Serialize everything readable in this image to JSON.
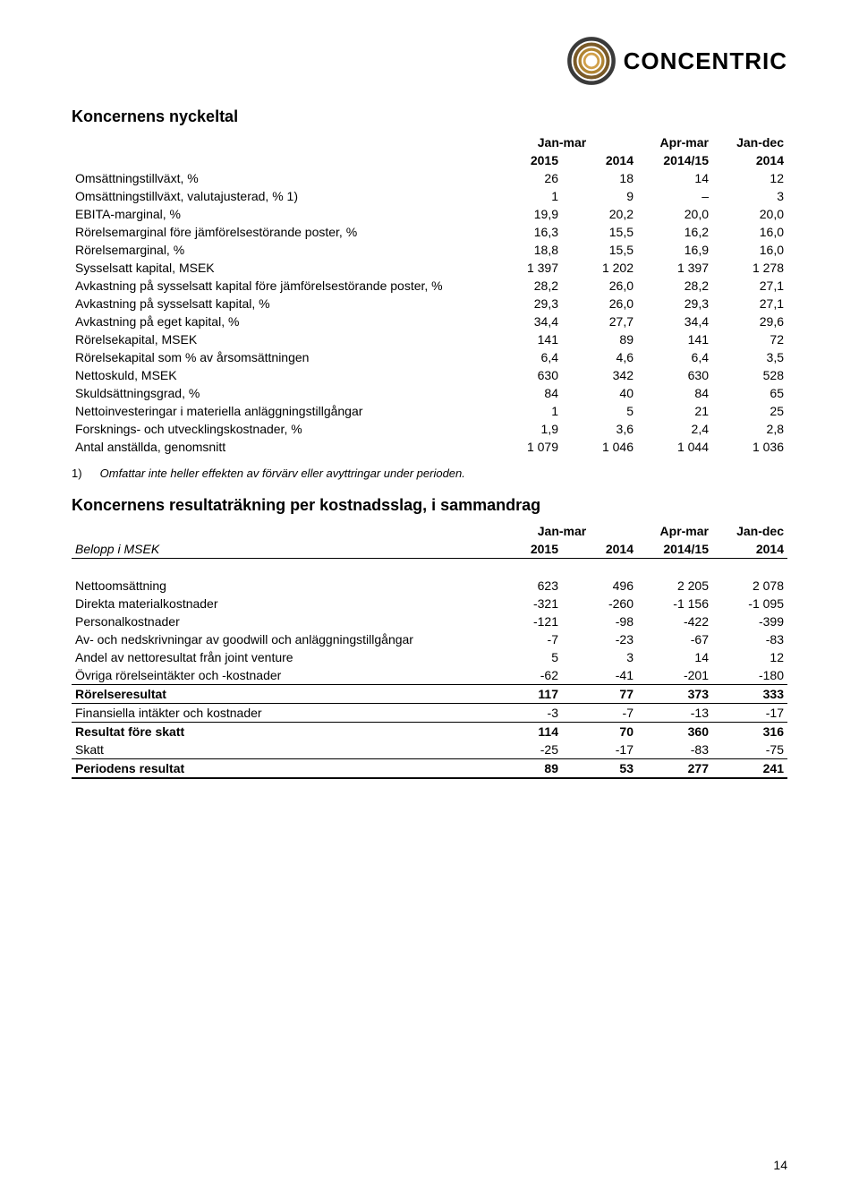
{
  "logo": {
    "brand": "CONCENTRIC",
    "ring_colors": [
      "#3a3a3a",
      "#7a5a28",
      "#b08432",
      "#d1a04a"
    ]
  },
  "page_number": "14",
  "table1": {
    "title": "Koncernens nyckeltal",
    "header": {
      "p1_top": "Jan-mar",
      "p1_a": "2015",
      "p1_b": "2014",
      "p2_top": "Apr-mar",
      "p2": "2014/15",
      "p3_top": "Jan-dec",
      "p3": "2014"
    },
    "rows": [
      {
        "label": "Omsättningstillväxt, %",
        "c": [
          "26",
          "18",
          "14",
          "12"
        ]
      },
      {
        "label": "Omsättningstillväxt, valutajusterad, % 1)",
        "c": [
          "1",
          "9",
          "–",
          "3"
        ]
      },
      {
        "label": "EBITA-marginal, %",
        "c": [
          "19,9",
          "20,2",
          "20,0",
          "20,0"
        ]
      },
      {
        "label": "Rörelsemarginal före jämförelsestörande poster, %",
        "c": [
          "16,3",
          "15,5",
          "16,2",
          "16,0"
        ]
      },
      {
        "label": "Rörelsemarginal, %",
        "c": [
          "18,8",
          "15,5",
          "16,9",
          "16,0"
        ]
      },
      {
        "label": "Sysselsatt kapital, MSEK",
        "c": [
          "1 397",
          "1 202",
          "1 397",
          "1 278"
        ]
      },
      {
        "label": "Avkastning på sysselsatt kapital före jämförelsestörande poster, %",
        "c": [
          "28,2",
          "26,0",
          "28,2",
          "27,1"
        ]
      },
      {
        "label": "Avkastning på sysselsatt kapital, %",
        "c": [
          "29,3",
          "26,0",
          "29,3",
          "27,1"
        ]
      },
      {
        "label": "Avkastning på eget kapital, %",
        "c": [
          "34,4",
          "27,7",
          "34,4",
          "29,6"
        ]
      },
      {
        "label": "Rörelsekapital, MSEK",
        "c": [
          "141",
          "89",
          "141",
          "72"
        ]
      },
      {
        "label": "Rörelsekapital som % av årsomsättningen",
        "c": [
          "6,4",
          "4,6",
          "6,4",
          "3,5"
        ]
      },
      {
        "label": "Nettoskuld, MSEK",
        "c": [
          "630",
          "342",
          "630",
          "528"
        ]
      },
      {
        "label": "Skuldsättningsgrad, %",
        "c": [
          "84",
          "40",
          "84",
          "65"
        ]
      },
      {
        "label": "Nettoinvesteringar i materiella anläggningstillgångar",
        "c": [
          "1",
          "5",
          "21",
          "25"
        ]
      },
      {
        "label": "Forsknings- och utvecklingskostnader, %",
        "c": [
          "1,9",
          "3,6",
          "2,4",
          "2,8"
        ]
      },
      {
        "label": "Antal anställda, genomsnitt",
        "c": [
          "1 079",
          "1 046",
          "1 044",
          "1 036"
        ]
      }
    ],
    "footnote": "Omfattar inte heller effekten av förvärv eller avyttringar under perioden.",
    "footnote_num": "1)"
  },
  "table2": {
    "title": "Koncernens resultaträkning per kostnadsslag, i sammandrag",
    "belopp": "Belopp i MSEK",
    "header": {
      "p1_top": "Jan-mar",
      "p1_a": "2015",
      "p1_b": "2014",
      "p2_top": "Apr-mar",
      "p2": "2014/15",
      "p3_top": "Jan-dec",
      "p3": "2014"
    },
    "body": [
      {
        "label": "Nettoomsättning",
        "c": [
          "623",
          "496",
          "2 205",
          "2 078"
        ]
      },
      {
        "label": "Direkta materialkostnader",
        "c": [
          "-321",
          "-260",
          "-1 156",
          "-1 095"
        ]
      },
      {
        "label": "Personalkostnader",
        "c": [
          "-121",
          "-98",
          "-422",
          "-399"
        ]
      },
      {
        "label": "Av- och nedskrivningar av goodwill och anläggningstillgångar",
        "c": [
          "-7",
          "-23",
          "-67",
          "-83"
        ]
      },
      {
        "label": "Andel av nettoresultat från joint venture",
        "c": [
          "5",
          "3",
          "14",
          "12"
        ]
      },
      {
        "label": "Övriga rörelseintäkter och -kostnader",
        "c": [
          "-62",
          "-41",
          "-201",
          "-180"
        ]
      }
    ],
    "rorelse": {
      "label": "Rörelseresultat",
      "c": [
        "117",
        "77",
        "373",
        "333"
      ]
    },
    "fin": {
      "label": "Finansiella intäkter och kostnader",
      "c": [
        "-3",
        "-7",
        "-13",
        "-17"
      ]
    },
    "resfore": {
      "label": "Resultat före skatt",
      "c": [
        "114",
        "70",
        "360",
        "316"
      ]
    },
    "skatt": {
      "label": "Skatt",
      "c": [
        "-25",
        "-17",
        "-83",
        "-75"
      ]
    },
    "period": {
      "label": "Periodens resultat",
      "c": [
        "89",
        "53",
        "277",
        "241"
      ]
    }
  }
}
